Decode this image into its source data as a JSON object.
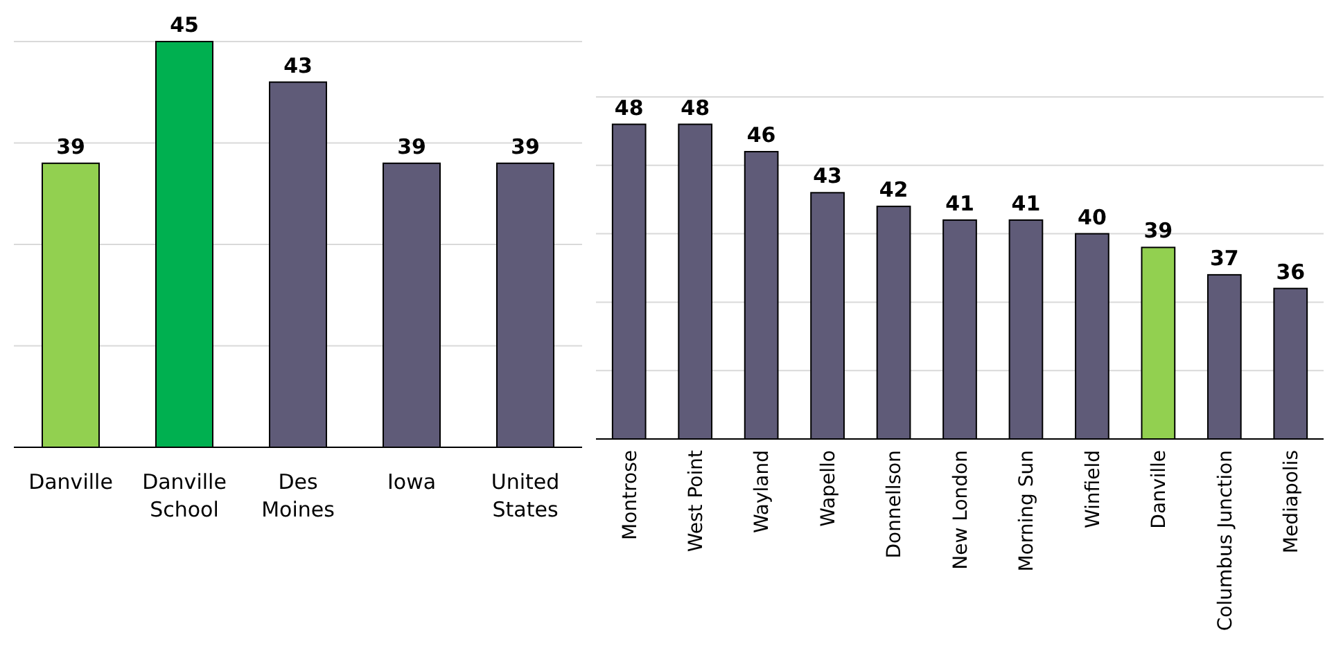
{
  "chart_data": [
    {
      "type": "bar",
      "categories": [
        "Danville",
        "Danville School",
        "Des Moines",
        "Iowa",
        "United States"
      ],
      "values": [
        39,
        45,
        43,
        39,
        39
      ],
      "colors": [
        "#92d050",
        "#00b050",
        "#5f5b78",
        "#5f5b78",
        "#5f5b78"
      ],
      "ylim": [
        25,
        45
      ],
      "yticks": [
        {
          "value": 25,
          "label": null
        },
        {
          "value": 30,
          "label": null
        },
        {
          "value": 35,
          "label": null
        },
        {
          "value": 40,
          "label": null
        },
        {
          "value": 45,
          "label": null
        }
      ],
      "tick_labels": "x",
      "grid": "y",
      "data_labels": true
    },
    {
      "type": "bar",
      "categories": [
        "Montrose",
        "West Point",
        "Wayland",
        "Wapello",
        "Donnellson",
        "New London",
        "Morning Sun",
        "Winfield",
        "Danville",
        "Columbus Junction",
        "Mediapolis"
      ],
      "values": [
        48,
        48,
        46,
        43,
        42,
        41,
        41,
        40,
        39,
        37,
        36
      ],
      "colors": [
        "#5f5b78",
        "#5f5b78",
        "#5f5b78",
        "#5f5b78",
        "#5f5b78",
        "#5f5b78",
        "#5f5b78",
        "#5f5b78",
        "#92d050",
        "#5f5b78",
        "#5f5b78"
      ],
      "ylim": [
        25,
        50
      ],
      "yticks": [
        {
          "value": 25,
          "label": null
        },
        {
          "value": 30,
          "label": null
        },
        {
          "value": 35,
          "label": null
        },
        {
          "value": 40,
          "label": null
        },
        {
          "value": 45,
          "label": null
        },
        {
          "value": 50,
          "label": null
        }
      ],
      "tick_labels": "x",
      "grid": "y",
      "data_labels": true
    }
  ]
}
